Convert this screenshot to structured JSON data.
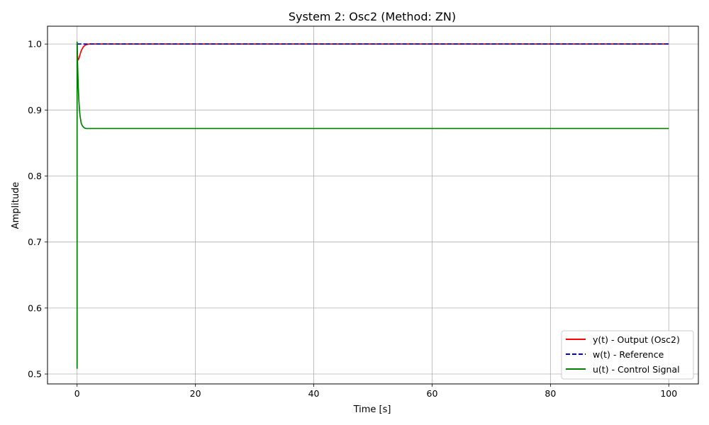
{
  "chart_data": {
    "type": "line",
    "title": "System 2: Osc2 (Method: ZN)",
    "xlabel": "Time [s]",
    "ylabel": "Amplitude",
    "xlim": [
      -5,
      105
    ],
    "ylim": [
      0.485,
      1.027
    ],
    "xticks": [
      0,
      20,
      40,
      60,
      80,
      100
    ],
    "yticks": [
      0.5,
      0.6,
      0.7,
      0.8,
      0.9,
      1.0
    ],
    "xtick_labels": [
      "0",
      "20",
      "40",
      "60",
      "80",
      "100"
    ],
    "ytick_labels": [
      "0.5",
      "0.6",
      "0.7",
      "0.8",
      "0.9",
      "1.0"
    ],
    "grid": true,
    "legend_position": "lower-right",
    "series": [
      {
        "name": "y(t) - Output (Osc2)",
        "color": "#ff0000",
        "dash": "solid",
        "x": [
          0,
          0.05,
          0.1,
          0.2,
          0.3,
          0.5,
          0.7,
          1.0,
          1.3,
          1.6,
          2.0,
          2.5,
          3,
          100
        ],
        "y": [
          1.0,
          0.985,
          0.978,
          0.976,
          0.978,
          0.984,
          0.99,
          0.995,
          0.998,
          0.999,
          1.0,
          1.0,
          1.0,
          1.0
        ]
      },
      {
        "name": "w(t) - Reference",
        "color": "#0000cc",
        "dash": "dashed",
        "x": [
          0,
          100
        ],
        "y": [
          1.0,
          1.0
        ]
      },
      {
        "name": "u(t) - Control Signal",
        "color": "#008000",
        "dash": "solid",
        "x": [
          0,
          0,
          0.02,
          0.05,
          0.1,
          0.2,
          0.3,
          0.4,
          0.5,
          0.7,
          0.9,
          1.2,
          1.5,
          2.0,
          3.0,
          100
        ],
        "y": [
          0.508,
          1.003,
          1.0,
          0.985,
          0.965,
          0.935,
          0.915,
          0.901,
          0.891,
          0.88,
          0.876,
          0.873,
          0.872,
          0.872,
          0.872,
          0.872
        ]
      }
    ]
  }
}
